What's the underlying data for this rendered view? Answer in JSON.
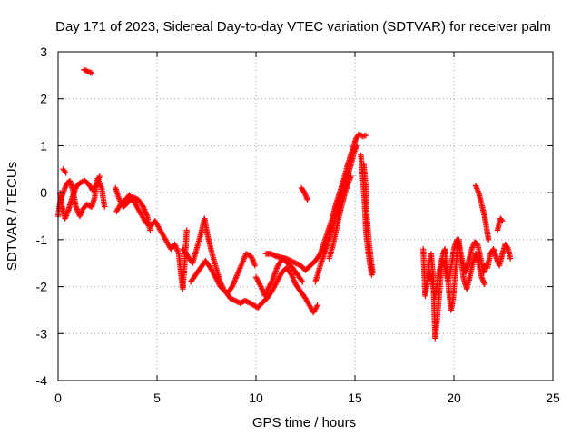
{
  "chart_data": {
    "type": "scatter",
    "title": "Day 171 of 2023, Sidereal Day-to-day VTEC variation (SDTVAR) for receiver palm",
    "xlabel": "GPS time / hours",
    "ylabel": "SDTVAR / TECUs",
    "xlim": [
      0,
      25
    ],
    "ylim": [
      -4,
      3
    ],
    "xticks": [
      0,
      5,
      10,
      15,
      20,
      25
    ],
    "yticks": [
      -4,
      -3,
      -2,
      -1,
      0,
      1,
      2,
      3
    ],
    "grid": true,
    "marker": "plus",
    "series": [
      {
        "name": "SDTVAR",
        "color": "#ff0000",
        "segments": [
          [
            [
              0.0,
              -0.5
            ],
            [
              0.1,
              -0.2
            ],
            [
              0.25,
              0.0
            ],
            [
              0.45,
              0.2
            ],
            [
              0.6,
              0.25
            ],
            [
              0.75,
              0.05
            ],
            [
              0.9,
              -0.3
            ],
            [
              1.1,
              -0.5
            ],
            [
              1.25,
              -0.35
            ],
            [
              1.45,
              -0.25
            ],
            [
              1.7,
              -0.3
            ],
            [
              1.85,
              -0.1
            ],
            [
              2.0,
              0.3
            ],
            [
              2.2,
              0.1
            ],
            [
              2.35,
              -0.3
            ]
          ],
          [
            [
              0.1,
              0.0
            ],
            [
              0.2,
              -0.3
            ],
            [
              0.35,
              -0.55
            ],
            [
              0.5,
              -0.4
            ],
            [
              0.65,
              -0.2
            ],
            [
              0.8,
              0.0
            ],
            [
              0.95,
              0.15
            ],
            [
              1.15,
              0.22
            ],
            [
              1.35,
              0.25
            ],
            [
              1.55,
              0.18
            ],
            [
              1.75,
              0.05
            ],
            [
              1.9,
              0.15
            ],
            [
              2.1,
              0.35
            ]
          ],
          [
            [
              0.25,
              0.5
            ],
            [
              0.4,
              0.42
            ]
          ],
          [
            [
              1.3,
              2.62
            ],
            [
              1.5,
              2.58
            ],
            [
              1.7,
              2.55
            ]
          ],
          [
            [
              2.95,
              -0.4
            ],
            [
              3.15,
              -0.25
            ],
            [
              3.4,
              -0.15
            ],
            [
              3.6,
              -0.05
            ],
            [
              3.85,
              -0.2
            ],
            [
              4.05,
              -0.35
            ],
            [
              4.25,
              -0.5
            ],
            [
              4.45,
              -0.65
            ],
            [
              4.7,
              -0.7
            ],
            [
              4.9,
              -0.6
            ],
            [
              5.1,
              -0.75
            ],
            [
              5.3,
              -0.9
            ],
            [
              5.5,
              -1.05
            ],
            [
              5.7,
              -1.2
            ],
            [
              5.9,
              -1.1
            ],
            [
              6.05,
              -1.25
            ]
          ],
          [
            [
              2.9,
              0.1
            ],
            [
              3.1,
              -0.15
            ],
            [
              3.3,
              -0.3
            ],
            [
              3.55,
              -0.2
            ],
            [
              3.8,
              -0.1
            ],
            [
              4.05,
              -0.15
            ],
            [
              4.3,
              -0.3
            ],
            [
              4.5,
              -0.5
            ],
            [
              4.65,
              -0.8
            ]
          ],
          [
            [
              6.1,
              -1.3
            ],
            [
              6.2,
              -1.7
            ],
            [
              6.3,
              -2.05
            ],
            [
              6.4,
              -1.5
            ],
            [
              6.5,
              -0.8
            ]
          ],
          [
            [
              6.3,
              -1.2
            ],
            [
              6.55,
              -1.35
            ],
            [
              6.8,
              -1.5
            ],
            [
              7.0,
              -1.2
            ],
            [
              7.2,
              -0.9
            ],
            [
              7.4,
              -0.55
            ],
            [
              7.55,
              -0.9
            ],
            [
              7.75,
              -1.25
            ],
            [
              7.95,
              -1.55
            ],
            [
              8.15,
              -1.85
            ],
            [
              8.35,
              -2.05
            ],
            [
              8.55,
              -2.15
            ],
            [
              8.8,
              -2.0
            ],
            [
              9.0,
              -1.8
            ],
            [
              9.25,
              -1.55
            ],
            [
              9.5,
              -1.3
            ],
            [
              9.75,
              -1.35
            ],
            [
              9.95,
              -1.55
            ]
          ],
          [
            [
              6.7,
              -1.9
            ],
            [
              6.95,
              -1.75
            ],
            [
              7.2,
              -1.6
            ],
            [
              7.45,
              -1.45
            ],
            [
              7.7,
              -1.6
            ],
            [
              7.95,
              -1.8
            ],
            [
              8.2,
              -2.0
            ],
            [
              8.45,
              -2.1
            ],
            [
              8.7,
              -2.25
            ],
            [
              8.95,
              -2.3
            ],
            [
              9.2,
              -2.35
            ],
            [
              9.45,
              -2.3
            ],
            [
              9.7,
              -2.35
            ],
            [
              9.9,
              -2.4
            ],
            [
              10.1,
              -2.45
            ],
            [
              10.3,
              -2.35
            ],
            [
              10.55,
              -2.25
            ],
            [
              10.8,
              -2.1
            ],
            [
              11.05,
              -1.9
            ],
            [
              11.3,
              -1.7
            ],
            [
              11.55,
              -1.6
            ],
            [
              11.8,
              -1.75
            ],
            [
              12.0,
              -1.95
            ],
            [
              12.25,
              -2.1
            ],
            [
              12.5,
              -2.25
            ],
            [
              12.7,
              -2.4
            ],
            [
              12.9,
              -2.55
            ],
            [
              13.1,
              -2.4
            ]
          ],
          [
            [
              10.0,
              -1.8
            ],
            [
              10.25,
              -2.0
            ],
            [
              10.45,
              -2.2
            ],
            [
              10.6,
              -2.05
            ],
            [
              10.85,
              -1.85
            ],
            [
              11.1,
              -1.55
            ],
            [
              11.35,
              -1.4
            ],
            [
              11.6,
              -1.5
            ],
            [
              11.85,
              -1.6
            ],
            [
              12.1,
              -1.75
            ],
            [
              12.35,
              -1.9
            ]
          ],
          [
            [
              10.5,
              -1.3
            ],
            [
              10.75,
              -1.3
            ],
            [
              11.0,
              -1.35
            ],
            [
              11.25,
              -1.38
            ],
            [
              11.5,
              -1.4
            ],
            [
              11.75,
              -1.45
            ],
            [
              12.0,
              -1.5
            ],
            [
              12.25,
              -1.55
            ],
            [
              12.5,
              -1.65
            ],
            [
              12.75,
              -1.55
            ],
            [
              13.0,
              -1.45
            ],
            [
              13.25,
              -1.3
            ],
            [
              13.45,
              -1.05
            ],
            [
              13.65,
              -0.8
            ],
            [
              13.85,
              -0.55
            ],
            [
              14.0,
              -0.3
            ],
            [
              14.15,
              -0.1
            ],
            [
              14.3,
              0.1
            ],
            [
              14.45,
              0.3
            ],
            [
              14.6,
              0.55
            ],
            [
              14.75,
              0.75
            ],
            [
              14.9,
              0.95
            ],
            [
              15.05,
              1.15
            ],
            [
              15.2,
              1.25
            ],
            [
              15.4,
              1.2
            ],
            [
              15.55,
              1.22
            ]
          ],
          [
            [
              12.3,
              0.1
            ],
            [
              12.45,
              0.0
            ],
            [
              12.6,
              -0.15
            ]
          ],
          [
            [
              13.0,
              -1.9
            ],
            [
              13.25,
              -1.55
            ],
            [
              13.45,
              -1.3
            ],
            [
              13.6,
              -1.1
            ],
            [
              13.75,
              -0.9
            ],
            [
              13.9,
              -0.7
            ],
            [
              14.05,
              -0.45
            ],
            [
              14.2,
              -0.2
            ],
            [
              14.35,
              0.05
            ],
            [
              14.5,
              0.25
            ],
            [
              14.65,
              0.4
            ],
            [
              14.8,
              0.6
            ],
            [
              14.95,
              0.85
            ],
            [
              15.1,
              1.0
            ]
          ],
          [
            [
              13.7,
              -1.4
            ],
            [
              13.9,
              -1.1
            ],
            [
              14.05,
              -0.8
            ],
            [
              14.2,
              -0.5
            ],
            [
              14.35,
              -0.25
            ],
            [
              14.5,
              0.0
            ],
            [
              14.65,
              0.2
            ],
            [
              14.8,
              0.35
            ]
          ],
          [
            [
              15.3,
              0.8
            ],
            [
              15.4,
              0.3
            ],
            [
              15.5,
              -0.3
            ],
            [
              15.55,
              -0.8
            ],
            [
              15.65,
              -1.2
            ],
            [
              15.75,
              -1.5
            ],
            [
              15.85,
              -1.75
            ]
          ],
          [
            [
              15.45,
              0.6
            ],
            [
              15.55,
              0.1
            ],
            [
              15.6,
              -0.5
            ],
            [
              15.7,
              -1.0
            ],
            [
              15.8,
              -1.4
            ],
            [
              15.9,
              -1.7
            ]
          ],
          [
            [
              18.45,
              -1.2
            ],
            [
              18.5,
              -1.7
            ],
            [
              18.55,
              -2.2
            ],
            [
              18.65,
              -1.9
            ],
            [
              18.75,
              -1.5
            ],
            [
              18.85,
              -1.3
            ],
            [
              18.95,
              -1.8
            ],
            [
              19.0,
              -2.4
            ],
            [
              19.05,
              -3.1
            ],
            [
              19.15,
              -2.7
            ],
            [
              19.25,
              -2.2
            ],
            [
              19.35,
              -1.7
            ],
            [
              19.45,
              -1.3
            ],
            [
              19.55,
              -1.2
            ],
            [
              19.65,
              -1.6
            ],
            [
              19.75,
              -2.1
            ],
            [
              19.85,
              -2.5
            ],
            [
              19.95,
              -2.3
            ],
            [
              20.05,
              -1.8
            ],
            [
              20.15,
              -1.3
            ],
            [
              20.25,
              -1.0
            ],
            [
              20.35,
              -1.4
            ],
            [
              20.5,
              -1.85
            ],
            [
              20.65,
              -2.05
            ],
            [
              20.8,
              -1.8
            ],
            [
              20.95,
              -1.5
            ],
            [
              21.1,
              -1.3
            ],
            [
              21.25,
              -1.5
            ],
            [
              21.4,
              -1.8
            ],
            [
              21.55,
              -1.95
            ]
          ],
          [
            [
              18.6,
              -2.0
            ],
            [
              18.75,
              -1.7
            ],
            [
              18.9,
              -1.9
            ],
            [
              19.05,
              -2.2
            ],
            [
              19.2,
              -1.8
            ],
            [
              19.4,
              -1.4
            ],
            [
              19.55,
              -1.6
            ],
            [
              19.7,
              -1.9
            ],
            [
              19.85,
              -1.6
            ],
            [
              20.0,
              -1.2
            ],
            [
              20.15,
              -1.0
            ],
            [
              20.3,
              -1.2
            ],
            [
              20.45,
              -1.5
            ],
            [
              20.6,
              -1.7
            ],
            [
              20.75,
              -1.45
            ],
            [
              20.9,
              -1.2
            ],
            [
              21.05,
              -1.05
            ],
            [
              21.2,
              -1.1
            ],
            [
              21.35,
              -1.4
            ],
            [
              21.5,
              -1.7
            ],
            [
              21.65,
              -1.5
            ]
          ],
          [
            [
              21.1,
              0.15
            ],
            [
              21.25,
              0.0
            ],
            [
              21.4,
              -0.25
            ],
            [
              21.55,
              -0.5
            ],
            [
              21.65,
              -0.75
            ],
            [
              21.75,
              -1.0
            ]
          ],
          [
            [
              21.7,
              -1.6
            ],
            [
              21.85,
              -1.3
            ],
            [
              22.0,
              -1.2
            ],
            [
              22.15,
              -1.4
            ],
            [
              22.3,
              -1.55
            ],
            [
              22.45,
              -1.3
            ],
            [
              22.6,
              -1.1
            ],
            [
              22.75,
              -1.2
            ],
            [
              22.85,
              -1.4
            ]
          ],
          [
            [
              22.2,
              -0.8
            ],
            [
              22.35,
              -0.55
            ],
            [
              22.45,
              -0.6
            ]
          ]
        ]
      }
    ]
  }
}
